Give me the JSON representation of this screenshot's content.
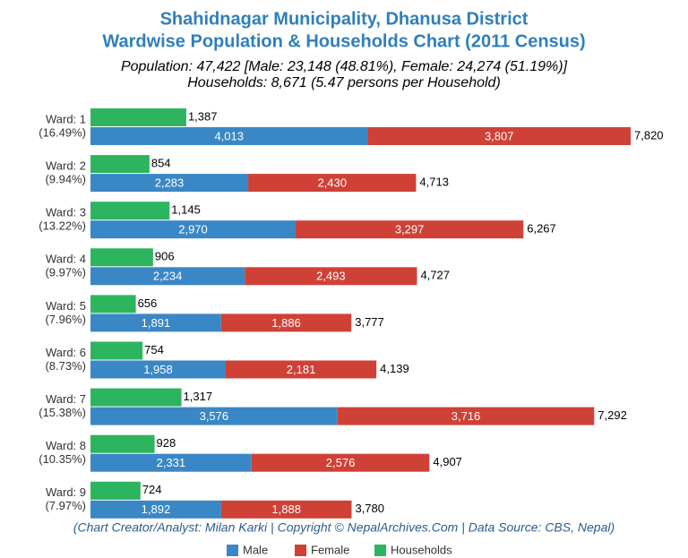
{
  "chart_data": {
    "type": "bar",
    "orientation": "horizontal",
    "title": "Shahidnagar Municipality, Dhanusa District",
    "title_line2": "Wardwise Population & Households Chart (2011 Census)",
    "subtitle": "Population: 47,422 [Male: 23,148 (48.81%), Female: 24,274 (51.19%)]",
    "subtitle_line2": "Households: 8,671 (5.47 persons per Household)",
    "footer": "(Chart Creator/Analyst: Milan Karki | Copyright © NepalArchives.Com | Data Source: CBS, Nepal)",
    "categories": [
      "Ward: 1",
      "Ward: 2",
      "Ward: 3",
      "Ward: 4",
      "Ward: 5",
      "Ward: 6",
      "Ward: 7",
      "Ward: 8",
      "Ward: 9"
    ],
    "category_sublabels": [
      "(16.49%)",
      "(9.94%)",
      "(13.22%)",
      "(9.97%)",
      "(7.96%)",
      "(8.73%)",
      "(15.38%)",
      "(10.35%)",
      "(7.97%)"
    ],
    "series": [
      {
        "name": "Male",
        "color": "#3a87c6",
        "stack": true,
        "values": [
          4013,
          2283,
          2970,
          2234,
          1891,
          1958,
          3576,
          2331,
          1892
        ],
        "value_labels": [
          "4,013",
          "2,283",
          "2,970",
          "2,234",
          "1,891",
          "1,958",
          "3,576",
          "2,331",
          "1,892"
        ]
      },
      {
        "name": "Female",
        "color": "#cf4137",
        "stack": true,
        "values": [
          3807,
          2430,
          3297,
          2493,
          1886,
          2181,
          3716,
          2576,
          1888
        ],
        "value_labels": [
          "3,807",
          "2,430",
          "3,297",
          "2,493",
          "1,886",
          "2,181",
          "3,716",
          "2,576",
          "1,888"
        ]
      },
      {
        "name": "Households",
        "color": "#2db45e",
        "stack": false,
        "values": [
          1387,
          854,
          1145,
          906,
          656,
          754,
          1317,
          928,
          724
        ],
        "value_labels": [
          "1,387",
          "854",
          "1,145",
          "906",
          "656",
          "754",
          "1,317",
          "928",
          "724"
        ]
      }
    ],
    "totals": {
      "values": [
        7820,
        4713,
        6267,
        4727,
        3777,
        4139,
        7292,
        4907,
        3780
      ],
      "value_labels": [
        "7,820",
        "4,713",
        "6,267",
        "4,727",
        "3,777",
        "4,139",
        "7,292",
        "4,907",
        "3,780"
      ]
    },
    "legend": "bottom"
  }
}
